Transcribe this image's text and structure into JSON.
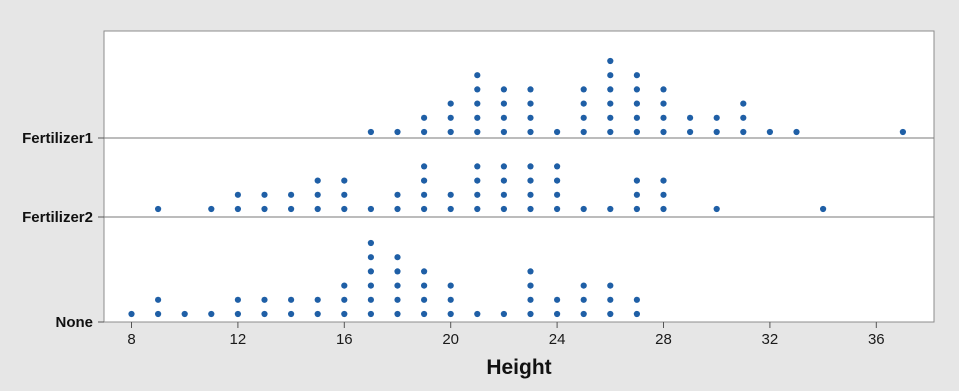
{
  "chart_data": {
    "type": "scatter",
    "subtype": "dotplot",
    "title": "",
    "xlabel": "Height",
    "ylabel": "",
    "xlim": [
      7,
      38.2
    ],
    "x_ticks": [
      8,
      12,
      16,
      20,
      24,
      28,
      32,
      36
    ],
    "categories": [
      "Fertilizer1",
      "Fertilizer2",
      "None"
    ],
    "grid": false,
    "legend": "none",
    "colors": {
      "dot": "#1f5fa6",
      "background": "#e6e6e6",
      "plot_area": "#ffffff",
      "border": "#8c8c8c"
    },
    "series": [
      {
        "name": "Fertilizer1",
        "counts": [
          [
            17,
            1
          ],
          [
            18,
            1
          ],
          [
            19,
            2
          ],
          [
            20,
            3
          ],
          [
            21,
            5
          ],
          [
            22,
            4
          ],
          [
            23,
            4
          ],
          [
            24,
            1
          ],
          [
            25,
            4
          ],
          [
            26,
            6
          ],
          [
            27,
            5
          ],
          [
            28,
            4
          ],
          [
            29,
            2
          ],
          [
            30,
            2
          ],
          [
            31,
            3
          ],
          [
            32,
            1
          ],
          [
            33,
            1
          ],
          [
            37,
            1
          ]
        ]
      },
      {
        "name": "Fertilizer2",
        "counts": [
          [
            9,
            1
          ],
          [
            11,
            1
          ],
          [
            12,
            2
          ],
          [
            13,
            2
          ],
          [
            14,
            2
          ],
          [
            15,
            3
          ],
          [
            16,
            3
          ],
          [
            17,
            1
          ],
          [
            18,
            2
          ],
          [
            19,
            4
          ],
          [
            20,
            2
          ],
          [
            21,
            4
          ],
          [
            22,
            4
          ],
          [
            23,
            4
          ],
          [
            24,
            4
          ],
          [
            25,
            1
          ],
          [
            26,
            1
          ],
          [
            27,
            3
          ],
          [
            28,
            3
          ],
          [
            30,
            1
          ],
          [
            34,
            1
          ]
        ]
      },
      {
        "name": "None",
        "counts": [
          [
            8,
            1
          ],
          [
            9,
            2
          ],
          [
            10,
            1
          ],
          [
            11,
            1
          ],
          [
            12,
            2
          ],
          [
            13,
            2
          ],
          [
            14,
            2
          ],
          [
            15,
            2
          ],
          [
            16,
            3
          ],
          [
            17,
            6
          ],
          [
            18,
            5
          ],
          [
            19,
            4
          ],
          [
            20,
            3
          ],
          [
            21,
            1
          ],
          [
            22,
            1
          ],
          [
            23,
            4
          ],
          [
            24,
            2
          ],
          [
            25,
            3
          ],
          [
            26,
            3
          ],
          [
            27,
            2
          ]
        ]
      }
    ]
  }
}
